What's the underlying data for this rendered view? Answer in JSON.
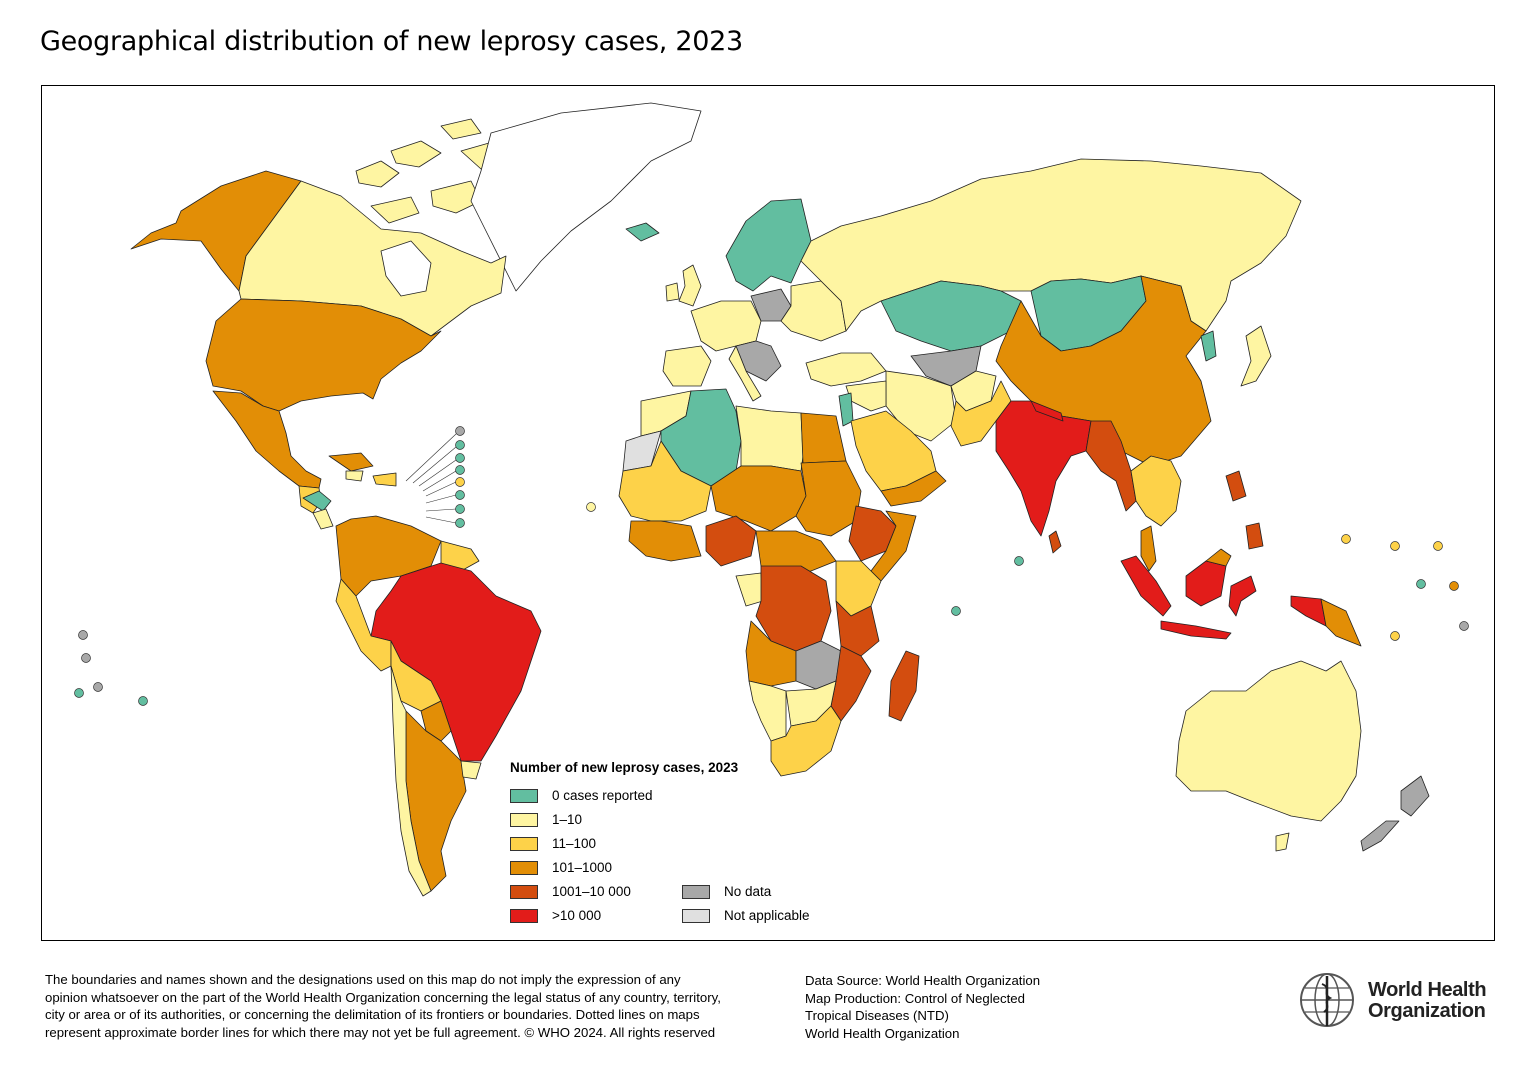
{
  "title": "Geographical distribution of new leprosy cases, 2023",
  "colors": {
    "zero": "#62bea0",
    "c1_10": "#fef5a2",
    "c11_100": "#fdd249",
    "c101_1000": "#e28e06",
    "c1001_10000": "#d34d0f",
    "c10000": "#e21c1a",
    "no_data": "#a8a8a8",
    "not_applicable": "#e0e0e0"
  },
  "legend": {
    "title": "Number of new leprosy cases, 2023",
    "items": [
      {
        "label": "0 cases reported",
        "color": "#62bea0"
      },
      {
        "label": "1–10",
        "color": "#fef5a2"
      },
      {
        "label": "11–100",
        "color": "#fdd249"
      },
      {
        "label": "101–1000",
        "color": "#e28e06"
      },
      {
        "label": "1001–10 000",
        "color": "#d34d0f"
      },
      {
        "label": ">10 000",
        "color": "#e21c1a"
      },
      {
        "label": "No data",
        "color": "#a8a8a8"
      },
      {
        "label": "Not applicable",
        "color": "#e0e0e0"
      }
    ]
  },
  "disclaimer": "The boundaries and names shown and the designations used on this map do not imply the expression of any opinion whatsoever on the part of the World Health Organization concerning the legal status of any country, territory, city or area or of its authorities, or concerning the delimitation of its frontiers or boundaries. Dotted lines on maps represent approximate border lines for which there may not yet be full agreement. © WHO 2024. All rights reserved",
  "source_lines": [
    "Data Source: World Health Organization",
    "Map Production: Control of Neglected",
    "Tropical Diseases (NTD)",
    "World Health Organization"
  ],
  "logo_text": [
    "World Health",
    "Organization"
  ]
}
